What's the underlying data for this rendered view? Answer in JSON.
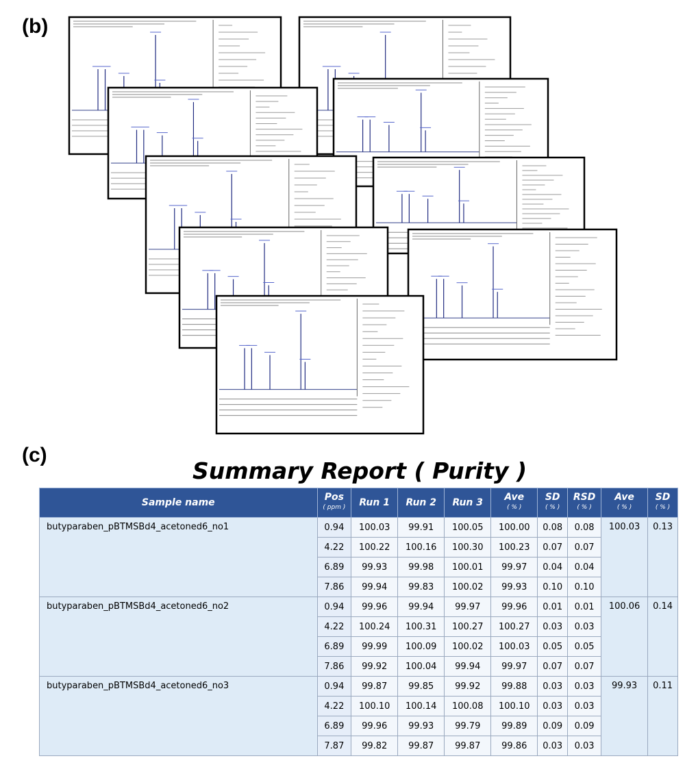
{
  "panels": {
    "b": "(b)",
    "c": "(c)"
  },
  "title": "Summary Report ( Purity )",
  "table": {
    "columns": [
      {
        "label": "Sample name"
      },
      {
        "label": "Pos",
        "unit": "( ppm )"
      },
      {
        "label": "Run 1"
      },
      {
        "label": "Run 2"
      },
      {
        "label": "Run 3"
      },
      {
        "label": "Ave",
        "unit": "( % )"
      },
      {
        "label": "SD",
        "unit": "( % )"
      },
      {
        "label": "RSD",
        "unit": "( % )"
      },
      {
        "label": "Ave",
        "unit": "( % )"
      },
      {
        "label": "SD",
        "unit": "( % )"
      }
    ],
    "groups": [
      {
        "sample": "butyparaben_pBTMSBd4_acetoned6_no1",
        "ave": "100.03",
        "sd": "0.13",
        "rows": [
          [
            "0.94",
            "100.03",
            "99.91",
            "100.05",
            "100.00",
            "0.08",
            "0.08"
          ],
          [
            "4.22",
            "100.22",
            "100.16",
            "100.30",
            "100.23",
            "0.07",
            "0.07"
          ],
          [
            "6.89",
            "99.93",
            "99.98",
            "100.01",
            "99.97",
            "0.04",
            "0.04"
          ],
          [
            "7.86",
            "99.94",
            "99.83",
            "100.02",
            "99.93",
            "0.10",
            "0.10"
          ]
        ]
      },
      {
        "sample": "butyparaben_pBTMSBd4_acetoned6_no2",
        "ave": "100.06",
        "sd": "0.14",
        "rows": [
          [
            "0.94",
            "99.96",
            "99.94",
            "99.97",
            "99.96",
            "0.01",
            "0.01"
          ],
          [
            "4.22",
            "100.24",
            "100.31",
            "100.27",
            "100.27",
            "0.03",
            "0.03"
          ],
          [
            "6.89",
            "99.99",
            "100.09",
            "100.02",
            "100.03",
            "0.05",
            "0.05"
          ],
          [
            "7.86",
            "99.92",
            "100.04",
            "99.94",
            "99.97",
            "0.07",
            "0.07"
          ]
        ]
      },
      {
        "sample": "butyparaben_pBTMSBd4_acetoned6_no3",
        "ave": "99.93",
        "sd": "0.11",
        "rows": [
          [
            "0.94",
            "99.87",
            "99.85",
            "99.92",
            "99.88",
            "0.03",
            "0.03"
          ],
          [
            "4.22",
            "100.10",
            "100.14",
            "100.08",
            "100.10",
            "0.03",
            "0.03"
          ],
          [
            "6.89",
            "99.96",
            "99.93",
            "99.79",
            "99.89",
            "0.09",
            "0.09"
          ],
          [
            "7.87",
            "99.82",
            "99.87",
            "99.87",
            "99.86",
            "0.03",
            "0.03"
          ]
        ]
      }
    ]
  }
}
